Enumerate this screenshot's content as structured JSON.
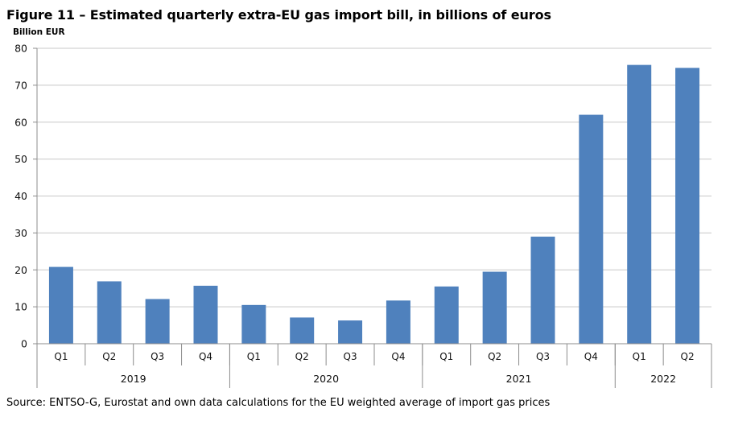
{
  "chart_data": {
    "type": "bar",
    "title": "Figure 11 – Estimated quarterly extra-EU gas import bill, in billions of euros",
    "ylabel": "Billion EUR",
    "xlabel": "",
    "ylim": [
      0,
      80
    ],
    "yticks": [
      0,
      10,
      20,
      30,
      40,
      50,
      60,
      70,
      80
    ],
    "grid": true,
    "legend": "none",
    "bar_color": "#4f81bd",
    "categories": [
      "Q1",
      "Q2",
      "Q3",
      "Q4",
      "Q1",
      "Q2",
      "Q3",
      "Q4",
      "Q1",
      "Q2",
      "Q3",
      "Q4",
      "Q1",
      "Q2"
    ],
    "groups": [
      {
        "label": "2019",
        "count": 4
      },
      {
        "label": "2020",
        "count": 4
      },
      {
        "label": "2021",
        "count": 4
      },
      {
        "label": "2022",
        "count": 2
      }
    ],
    "values": [
      20.8,
      16.9,
      12.1,
      15.7,
      10.5,
      7.1,
      6.3,
      11.7,
      15.5,
      19.5,
      29.0,
      62.0,
      75.5,
      74.7
    ]
  },
  "source": "Source: ENTSO-G, Eurostat and own data calculations for the EU weighted average of import gas prices"
}
